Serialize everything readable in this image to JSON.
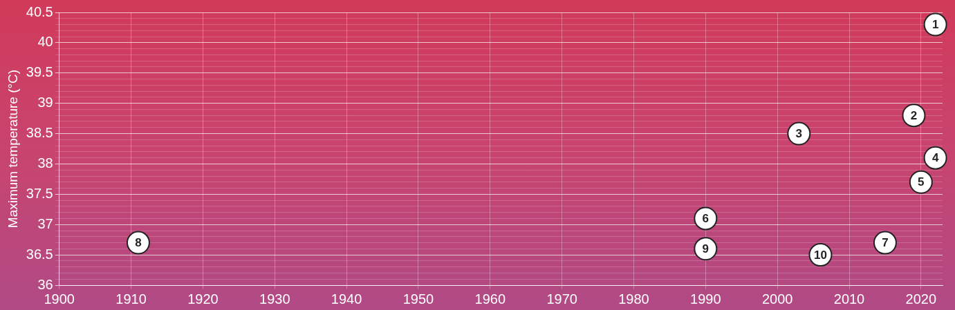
{
  "chart_data": {
    "type": "scatter",
    "ylabel": "Maximum temperature (°C)",
    "x": [
      2022,
      2019,
      2003,
      2022,
      2020,
      1990,
      2015,
      1911,
      1990,
      2006
    ],
    "values": [
      40.3,
      38.8,
      38.5,
      38.1,
      37.7,
      37.1,
      36.7,
      36.7,
      36.6,
      36.5
    ],
    "annotations": [
      {
        "text": "1",
        "x": 2022,
        "y": 40.3
      },
      {
        "text": "2",
        "x": 2019,
        "y": 38.8
      },
      {
        "text": "3",
        "x": 2003,
        "y": 38.5
      },
      {
        "text": "4",
        "x": 2022,
        "y": 38.1
      },
      {
        "text": "5",
        "x": 2020,
        "y": 37.7
      },
      {
        "text": "6",
        "x": 1990,
        "y": 37.1
      },
      {
        "text": "7",
        "x": 2015,
        "y": 36.7
      },
      {
        "text": "8",
        "x": 1911,
        "y": 36.7
      },
      {
        "text": "9",
        "x": 1990,
        "y": 36.6
      },
      {
        "text": "10",
        "x": 2006,
        "y": 36.5
      }
    ],
    "color": "#ffffff",
    "marker": "circle",
    "grid": true,
    "xlim": [
      1900,
      2023
    ],
    "xticks": [
      1900,
      1910,
      1920,
      1930,
      1940,
      1950,
      1960,
      1970,
      1980,
      1990,
      2000,
      2010,
      2020
    ],
    "ylim": [
      36,
      40.5
    ],
    "yticks": [
      36,
      {
        "value": 36.1,
        "label": null
      },
      {
        "value": 36.2,
        "label": null
      },
      {
        "value": 36.3,
        "label": null
      },
      {
        "value": 36.4,
        "label": null
      },
      36.5,
      {
        "value": 36.6,
        "label": null
      },
      {
        "value": 36.7,
        "label": null
      },
      {
        "value": 36.8,
        "label": null
      },
      {
        "value": 36.9,
        "label": null
      },
      37,
      {
        "value": 37.1,
        "label": null
      },
      {
        "value": 37.2,
        "label": null
      },
      {
        "value": 37.3,
        "label": null
      },
      {
        "value": 37.4,
        "label": null
      },
      37.5,
      {
        "value": 37.6,
        "label": null
      },
      {
        "value": 37.7,
        "label": null
      },
      {
        "value": 37.8,
        "label": null
      },
      {
        "value": 37.9,
        "label": null
      },
      38,
      {
        "value": 38.1,
        "label": null
      },
      {
        "value": 38.2,
        "label": null
      },
      {
        "value": 38.3,
        "label": null
      },
      {
        "value": 38.4,
        "label": null
      },
      38.5,
      {
        "value": 38.6,
        "label": null
      },
      {
        "value": 38.7,
        "label": null
      },
      {
        "value": 38.8,
        "label": null
      },
      {
        "value": 38.9,
        "label": null
      },
      39,
      {
        "value": 39.1,
        "label": null
      },
      {
        "value": 39.2,
        "label": null
      },
      {
        "value": 39.3,
        "label": null
      },
      {
        "value": 39.4,
        "label": null
      },
      39.5,
      {
        "value": 39.6,
        "label": null
      },
      {
        "value": 39.7,
        "label": null
      },
      {
        "value": 39.8,
        "label": null
      },
      {
        "value": 39.9,
        "label": null
      },
      40,
      {
        "value": 40.1,
        "label": null
      },
      {
        "value": 40.2,
        "label": null
      },
      {
        "value": 40.3,
        "label": null
      },
      {
        "value": 40.4,
        "label": null
      },
      40.5
    ]
  }
}
